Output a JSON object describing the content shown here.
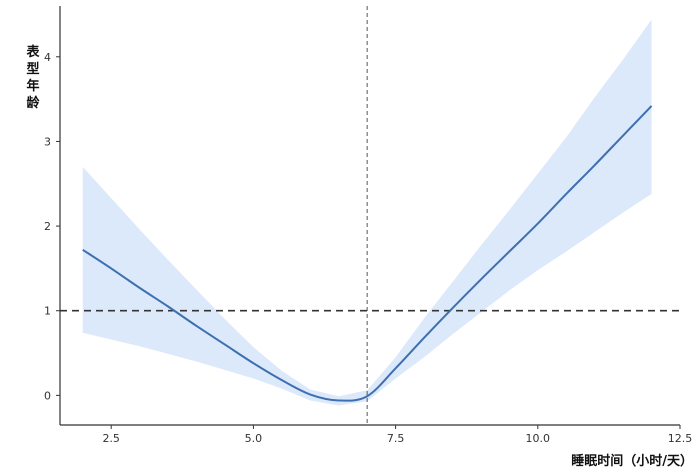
{
  "chart_data": {
    "type": "line",
    "title": "",
    "xlabel": "睡眠时间（小时/天）",
    "ylabel": "表型年龄",
    "xlim": [
      1.6,
      12.5
    ],
    "ylim": [
      -0.35,
      4.6
    ],
    "x_ticks": [
      "2.5",
      "5.0",
      "7.5",
      "10.0",
      "12.5"
    ],
    "y_ticks": [
      "0",
      "1",
      "2",
      "3",
      "4"
    ],
    "grid": false,
    "legend": "none",
    "reference_lines": {
      "vertical_x": 7,
      "horizontal_y": 1
    },
    "series": [
      {
        "line_color": "#3e6fb0",
        "band_color": "#dce9fb",
        "x": [
          2,
          2.5,
          3,
          3.5,
          4,
          4.5,
          5,
          5.5,
          6,
          6.5,
          7,
          7.5,
          8,
          8.5,
          9,
          9.5,
          10,
          10.5,
          11,
          11.5,
          12
        ],
        "y": [
          1.72,
          1.5,
          1.27,
          1.05,
          0.82,
          0.6,
          0.38,
          0.18,
          0.01,
          -0.06,
          -0.01,
          0.32,
          0.68,
          1.03,
          1.37,
          1.7,
          2.03,
          2.38,
          2.72,
          3.07,
          3.42
        ],
        "lower": [
          0.74,
          0.66,
          0.58,
          0.49,
          0.4,
          0.3,
          0.2,
          0.08,
          -0.06,
          -0.12,
          -0.07,
          0.2,
          0.45,
          0.72,
          0.98,
          1.24,
          1.48,
          1.7,
          1.93,
          2.16,
          2.38
        ],
        "upper": [
          2.7,
          2.33,
          1.96,
          1.6,
          1.25,
          0.9,
          0.57,
          0.29,
          0.07,
          -0.01,
          0.06,
          0.45,
          0.91,
          1.34,
          1.77,
          2.19,
          2.62,
          3.05,
          3.52,
          3.97,
          4.44
        ]
      }
    ]
  }
}
